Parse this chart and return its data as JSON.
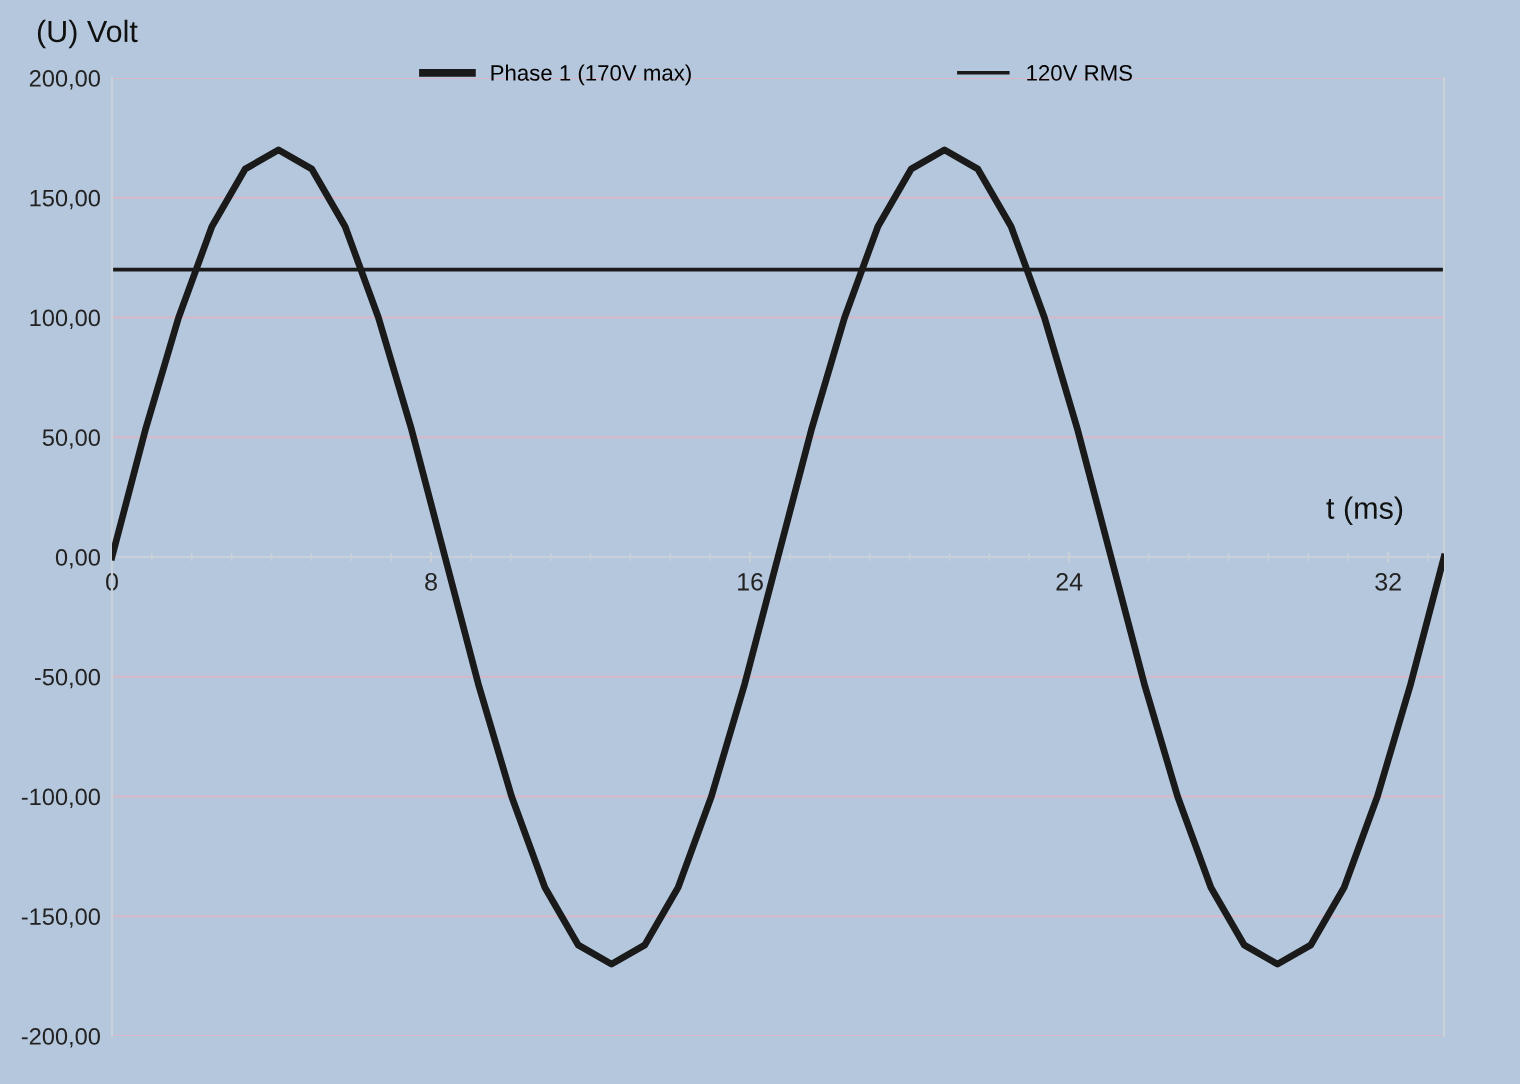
{
  "chart_data": {
    "type": "line",
    "ylabel": "(U) Volt",
    "xlabel": "t (ms)",
    "x": [
      0,
      0.835,
      1.67,
      2.505,
      3.34,
      4.175,
      5.01,
      5.845,
      6.68,
      7.515,
      8.35,
      9.185,
      10.02,
      10.855,
      11.69,
      12.525,
      13.36,
      14.195,
      15.03,
      15.865,
      16.7,
      17.535,
      18.37,
      19.205,
      20.04,
      20.875,
      21.71,
      22.545,
      23.38,
      24.215,
      25.05,
      25.885,
      26.72,
      27.555,
      28.39,
      29.225,
      30.06,
      30.895,
      31.73,
      32.565,
      33.4
    ],
    "series": [
      {
        "name": "Phase 1 (170V max)",
        "color": "#1a1a1a",
        "values": [
          0,
          53,
          100,
          138,
          162,
          170,
          162,
          138,
          100,
          53,
          0,
          -53,
          -100,
          -138,
          -162,
          -170,
          -162,
          -138,
          -100,
          -53,
          0,
          53,
          100,
          138,
          162,
          170,
          162,
          138,
          100,
          53,
          0,
          -53,
          -100,
          -138,
          -162,
          -170,
          -162,
          -138,
          -100,
          -53,
          0
        ]
      }
    ],
    "ref_lines": [
      {
        "axis": "y",
        "value": 120,
        "label": "120V RMS",
        "color": "#1a1a1a"
      }
    ],
    "xlim": [
      0,
      33.4
    ],
    "xticks": [
      0,
      8,
      16,
      24,
      32
    ],
    "ylim": [
      -200,
      200
    ],
    "yticks": [
      {
        "value": 200,
        "label": "200,00"
      },
      {
        "value": 150,
        "label": "150,00"
      },
      {
        "value": 100,
        "label": "100,00"
      },
      {
        "value": 50,
        "label": "50,00"
      },
      {
        "value": 0,
        "label": "0,00"
      },
      {
        "value": -50,
        "label": "-50,00"
      },
      {
        "value": -100,
        "label": "-100,00"
      },
      {
        "value": -150,
        "label": "-150,00"
      },
      {
        "value": -200,
        "label": "-200,00"
      }
    ],
    "grid": "y",
    "legend": "top",
    "marker": "none",
    "line_style": "solid"
  }
}
